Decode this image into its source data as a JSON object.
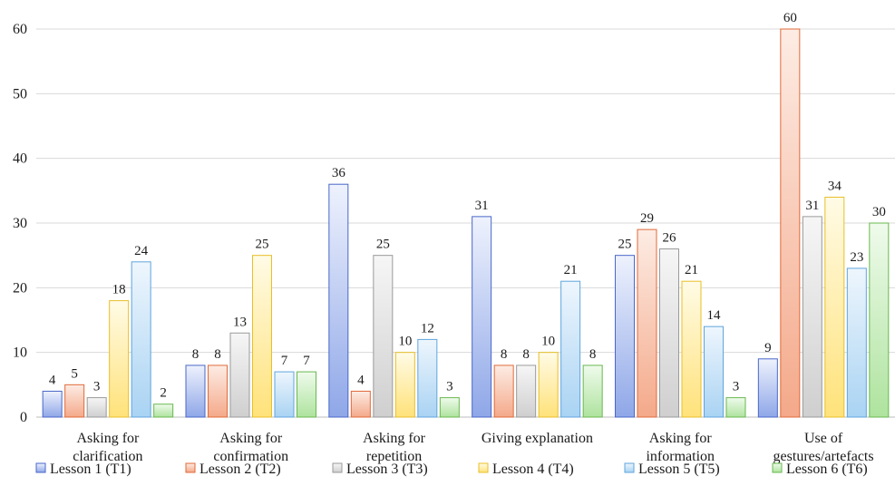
{
  "chart_data": {
    "type": "bar",
    "categories": [
      [
        "Asking for",
        "clarification"
      ],
      [
        "Asking for",
        "confirmation"
      ],
      [
        "Asking for",
        "repetition"
      ],
      [
        "Giving explanation"
      ],
      [
        "Asking for",
        "information"
      ],
      [
        "Use of",
        "gestures/artefacts"
      ]
    ],
    "series": [
      {
        "name": "Lesson 1 (T1)",
        "values": [
          4,
          8,
          36,
          31,
          25,
          9
        ],
        "light": "#eef2fd",
        "dark": "#8fa7e8",
        "stroke": "#4a67c9"
      },
      {
        "name": "Lesson 2 (T2)",
        "values": [
          5,
          8,
          4,
          8,
          29,
          60
        ],
        "light": "#fdece4",
        "dark": "#f4a98a",
        "stroke": "#e06a3a"
      },
      {
        "name": "Lesson 3 (T3)",
        "values": [
          3,
          13,
          25,
          8,
          26,
          31
        ],
        "light": "#f6f6f6",
        "dark": "#cfcfcf",
        "stroke": "#9a9a9a"
      },
      {
        "name": "Lesson 4 (T4)",
        "values": [
          18,
          25,
          10,
          10,
          21,
          34
        ],
        "light": "#fffbe6",
        "dark": "#ffe27a",
        "stroke": "#e8bf2a"
      },
      {
        "name": "Lesson 5 (T5)",
        "values": [
          24,
          7,
          12,
          21,
          14,
          23
        ],
        "light": "#eef6fd",
        "dark": "#a9d3f3",
        "stroke": "#5fa5dd"
      },
      {
        "name": "Lesson 6 (T6)",
        "values": [
          2,
          7,
          3,
          8,
          3,
          30
        ],
        "light": "#effbec",
        "dark": "#aee39e",
        "stroke": "#69b84f"
      }
    ],
    "yticks": [
      0,
      10,
      20,
      30,
      40,
      50,
      60
    ],
    "ylim": [
      0,
      60
    ],
    "grid": true,
    "legend": "bottom"
  }
}
